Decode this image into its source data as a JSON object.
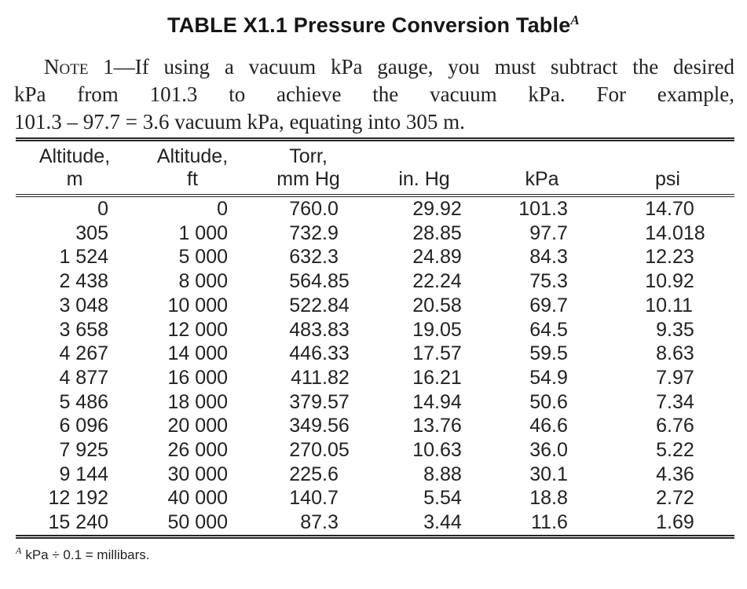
{
  "title": {
    "text": "TABLE X1.1 Pressure Conversion Table",
    "footnote_ref": "A"
  },
  "note": {
    "label_smallcaps": "Note",
    "line1_rest": " 1—If using a vacuum kPa gauge, you must subtract the desired",
    "line2": "kPa from 101.3 to achieve the vacuum kPa. For example,",
    "line3": "101.3 – 97.7 = 3.6 vacuum kPa, equating into 305 m."
  },
  "table": {
    "columns": [
      {
        "line1": "Altitude,",
        "line2": "m"
      },
      {
        "line1": "Altitude,",
        "line2": "ft"
      },
      {
        "line1": "Torr,",
        "line2": "mm Hg"
      },
      {
        "line1": "",
        "line2": "in. Hg"
      },
      {
        "line1": "",
        "line2": "kPa"
      },
      {
        "line1": "",
        "line2": "psi"
      }
    ],
    "rows": [
      [
        "0",
        "0",
        "760.0",
        "29.92",
        "101.3",
        "14.70"
      ],
      [
        "305",
        "1 000",
        "732.9",
        "28.85",
        "97.7",
        "14.018"
      ],
      [
        "1 524",
        "5 000",
        "632.3",
        "24.89",
        "84.3",
        "12.23"
      ],
      [
        "2 438",
        "8 000",
        "564.85",
        "22.24",
        "75.3",
        "10.92"
      ],
      [
        "3 048",
        "10 000",
        "522.84",
        "20.58",
        "69.7",
        "10.11"
      ],
      [
        "3 658",
        "12 000",
        "483.83",
        "19.05",
        "64.5",
        "9.35"
      ],
      [
        "4 267",
        "14 000",
        "446.33",
        "17.57",
        "59.5",
        "8.63"
      ],
      [
        "4 877",
        "16 000",
        "411.82",
        "16.21",
        "54.9",
        "7.97"
      ],
      [
        "5 486",
        "18 000",
        "379.57",
        "14.94",
        "50.6",
        "7.34"
      ],
      [
        "6 096",
        "20 000",
        "349.56",
        "13.76",
        "46.6",
        "6.76"
      ],
      [
        "7 925",
        "26 000",
        "270.05",
        "10.63",
        "36.0",
        "5.22"
      ],
      [
        "9 144",
        "30 000",
        "225.6",
        "8.88",
        "30.1",
        "4.36"
      ],
      [
        "12 192",
        "40 000",
        "140.7",
        "5.54",
        "18.8",
        "2.72"
      ],
      [
        "15 240",
        "50 000",
        "87.3",
        "3.44",
        "11.6",
        "1.69"
      ]
    ]
  },
  "footnote": {
    "ref": "A",
    "text": "kPa ÷ 0.1 = millibars."
  }
}
